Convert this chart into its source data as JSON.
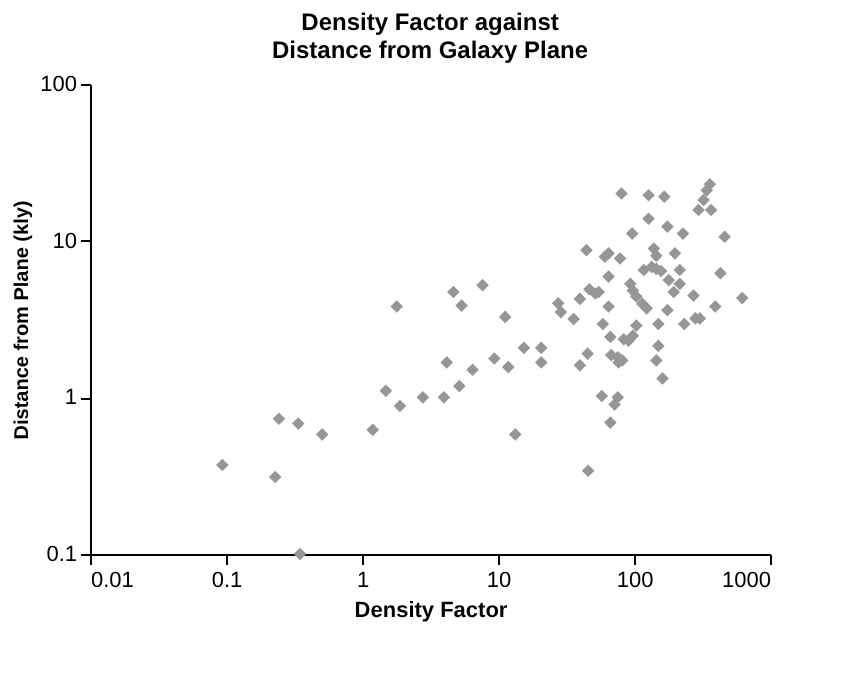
{
  "chart_data": {
    "type": "scatter",
    "title": "Density Factor against\nDistance from Galaxy Plane",
    "xlabel": "Density Factor",
    "ylabel": "Distance from Plane (kly)",
    "log": "xy",
    "xlim": [
      0.01,
      1000
    ],
    "xticks": [
      0.01,
      0.1,
      1,
      10,
      100,
      1000
    ],
    "ylim": [
      0.1,
      100
    ],
    "yticks": [
      0.1,
      1,
      10,
      100
    ],
    "grid": false,
    "legend": false,
    "marker": "diamond",
    "series": [
      {
        "color": "#969696",
        "x": [
          0.094,
          0.23,
          0.245,
          0.34,
          0.35,
          0.51,
          1.2,
          1.5,
          1.9,
          1.8,
          2.8,
          4.0,
          4.2,
          4.7,
          5.4,
          5.2,
          6.5,
          7.7,
          9.4,
          11.3,
          11.9,
          13.4,
          15.5,
          20.8,
          20.8,
          27.7,
          29,
          36,
          40,
          40,
          45.6,
          44.7,
          46,
          47,
          52,
          55,
          58,
          59,
          61,
          65,
          65,
          65,
          67,
          67,
          68,
          72,
          76,
          76,
          77,
          82,
          81,
          79,
          84,
          91,
          94,
          97,
          98,
          98,
          104,
          104,
          115,
          118,
          124,
          128,
          128,
          135,
          140,
          146,
          146,
          151,
          151,
          146,
          162,
          158,
          167,
          176,
          176,
          180,
          196,
          200,
          217,
          217,
          229,
          234,
          274,
          283,
          298,
          305,
          325,
          343,
          361,
          369,
          396,
          432,
          464,
          625
        ],
        "values": [
          0.37,
          0.31,
          0.73,
          0.68,
          0.1,
          0.58,
          0.62,
          1.1,
          0.88,
          3.8,
          1.0,
          1.0,
          1.67,
          4.7,
          3.85,
          1.18,
          1.5,
          5.2,
          1.77,
          3.26,
          1.56,
          0.58,
          2.07,
          2.07,
          1.67,
          3.98,
          3.5,
          3.16,
          4.25,
          1.6,
          1.9,
          8.7,
          0.34,
          4.9,
          4.6,
          4.7,
          1.02,
          2.94,
          7.9,
          8.3,
          5.9,
          3.8,
          0.69,
          2.43,
          1.86,
          0.9,
          1.0,
          1.8,
          1.67,
          1.72,
          20,
          7.7,
          2.35,
          2.3,
          5.3,
          11.1,
          4.8,
          2.47,
          2.87,
          4.4,
          3.96,
          6.5,
          3.7,
          19.5,
          13.8,
          6.8,
          8.9,
          8.0,
          6.6,
          2.94,
          2.13,
          1.72,
          1.32,
          6.4,
          19.1,
          3.6,
          12.3,
          5.6,
          4.7,
          8.3,
          6.5,
          5.3,
          11.1,
          2.94,
          4.46,
          3.19,
          15.7,
          3.19,
          18.2,
          21,
          22.9,
          15.7,
          3.8,
          6.2,
          10.6,
          4.3
        ]
      }
    ]
  }
}
